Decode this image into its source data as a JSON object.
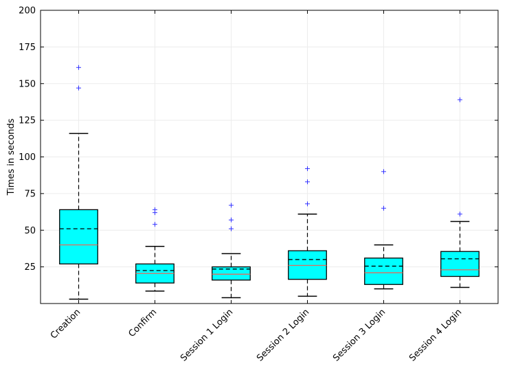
{
  "chart_data": {
    "type": "box",
    "title": "",
    "xlabel": "",
    "ylabel": "Times in seconds",
    "ylim": [
      0,
      200
    ],
    "yticks": [
      25,
      50,
      75,
      100,
      125,
      150,
      175,
      200
    ],
    "grid": true,
    "legend": "none",
    "categories": [
      "Creation",
      "Confirm",
      "Session 1 Login",
      "Session 2 Login",
      "Session 3 Login",
      "Session 4 Login"
    ],
    "boxes": [
      {
        "whisker_low": 3,
        "q1": 27,
        "median": 40,
        "mean": 51,
        "q3": 64,
        "whisker_high": 116,
        "outliers": [
          147,
          161
        ]
      },
      {
        "whisker_low": 8.5,
        "q1": 14,
        "median": 20.5,
        "mean": 22.5,
        "q3": 27,
        "whisker_high": 39,
        "outliers": [
          54,
          62,
          64
        ]
      },
      {
        "whisker_low": 4,
        "q1": 16,
        "median": 20,
        "mean": 23.5,
        "q3": 25,
        "whisker_high": 34,
        "outliers": [
          51,
          57,
          67
        ]
      },
      {
        "whisker_low": 5,
        "q1": 16.5,
        "median": 26,
        "mean": 30,
        "q3": 36,
        "whisker_high": 61,
        "outliers": [
          68,
          83,
          92
        ]
      },
      {
        "whisker_low": 10,
        "q1": 13,
        "median": 21,
        "mean": 25.5,
        "q3": 31,
        "whisker_high": 40,
        "outliers": [
          65,
          90
        ]
      },
      {
        "whisker_low": 11,
        "q1": 18.5,
        "median": 23,
        "mean": 30.5,
        "q3": 35.5,
        "whisker_high": 56,
        "outliers": [
          61,
          139
        ]
      }
    ],
    "colors": {
      "box_fill": "#00ffff",
      "box_edge": "#000000",
      "median": "#e66a5a",
      "mean_line": "#000000",
      "outlier": "#3030ff",
      "grid": "#ececec"
    }
  }
}
